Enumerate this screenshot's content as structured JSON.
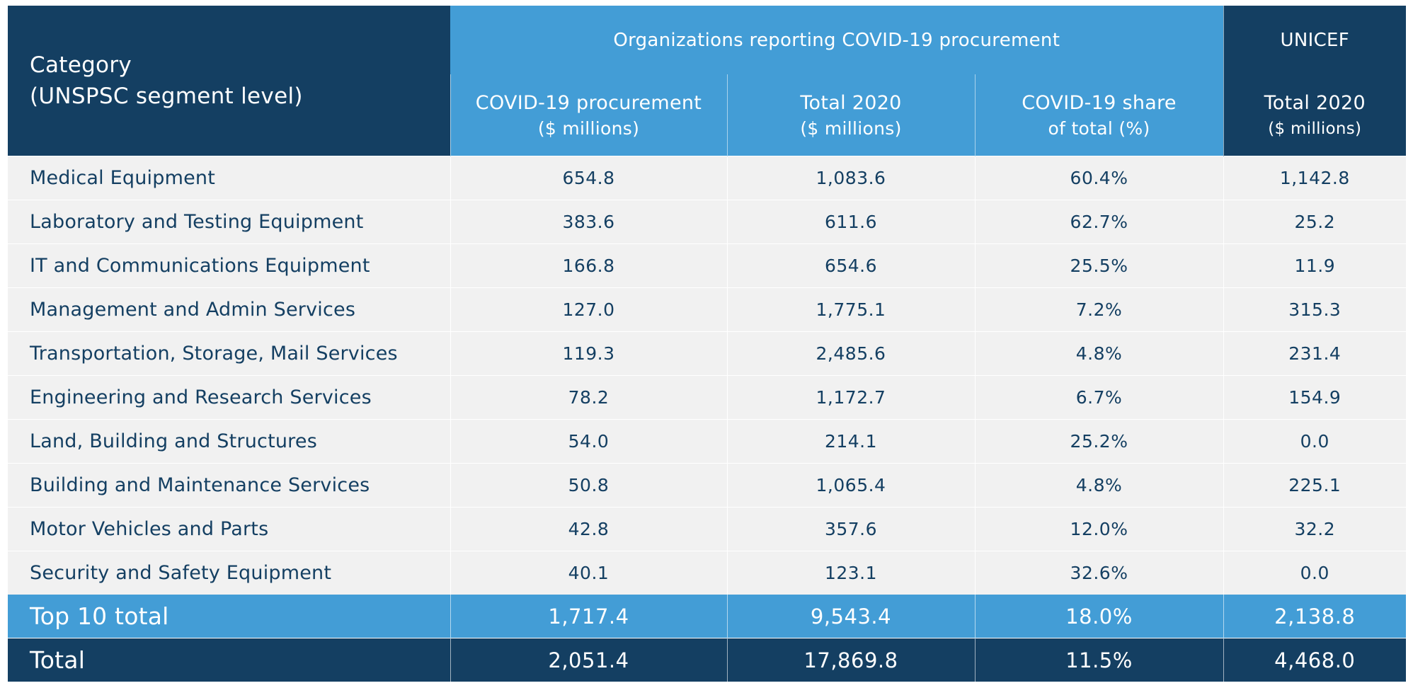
{
  "chart_data": {
    "type": "table",
    "header": {
      "category": "Category",
      "category_sub": "(UNSPSC segment level)",
      "group": "Organizations reporting COVID-19 procurement",
      "unicef": "UNICEF",
      "columns": [
        {
          "line1": "COVID-19 procurement",
          "line2": "($  millions)"
        },
        {
          "line1": "Total 2020",
          "line2": "($ millions)"
        },
        {
          "line1": "COVID-19 share",
          "line2": "of total  (%)"
        },
        {
          "line1": "Total 2020",
          "line2": "($ millions)"
        }
      ]
    },
    "rows": [
      {
        "category": "Medical Equipment",
        "covid": "654.8",
        "total": "1,083.6",
        "share": "60.4%",
        "unicef": "1,142.8"
      },
      {
        "category": "Laboratory and Testing Equipment",
        "covid": "383.6",
        "total": "611.6",
        "share": "62.7%",
        "unicef": "25.2"
      },
      {
        "category": "IT and Communications Equipment",
        "covid": "166.8",
        "total": "654.6",
        "share": "25.5%",
        "unicef": "11.9"
      },
      {
        "category": "Management and Admin Services",
        "covid": "127.0",
        "total": "1,775.1",
        "share": "7.2%",
        "unicef": "315.3"
      },
      {
        "category": "Transportation, Storage, Mail Services",
        "covid": "119.3",
        "total": "2,485.6",
        "share": "4.8%",
        "unicef": "231.4"
      },
      {
        "category": "Engineering and Research Services",
        "covid": "78.2",
        "total": "1,172.7",
        "share": "6.7%",
        "unicef": "154.9"
      },
      {
        "category": "Land, Building and Structures",
        "covid": "54.0",
        "total": "214.1",
        "share": "25.2%",
        "unicef": "0.0"
      },
      {
        "category": "Building and Maintenance Services",
        "covid": "50.8",
        "total": "1,065.4",
        "share": "4.8%",
        "unicef": "225.1"
      },
      {
        "category": "Motor Vehicles and Parts",
        "covid": "42.8",
        "total": "357.6",
        "share": "12.0%",
        "unicef": "32.2"
      },
      {
        "category": "Security and Safety Equipment",
        "covid": "40.1",
        "total": "123.1",
        "share": "32.6%",
        "unicef": "0.0"
      }
    ],
    "top10": {
      "category": "Top 10 total",
      "covid": "1,717.4",
      "total": "9,543.4",
      "share": "18.0%",
      "unicef": "2,138.8"
    },
    "total": {
      "category": "Total",
      "covid": "2,051.4",
      "total": "17,869.8",
      "share": "11.5%",
      "unicef": "4,468.0"
    }
  },
  "colors": {
    "dark_navy": "#143F62",
    "light_blue": "#439DD6",
    "row_bg": "#F1F1F1"
  }
}
